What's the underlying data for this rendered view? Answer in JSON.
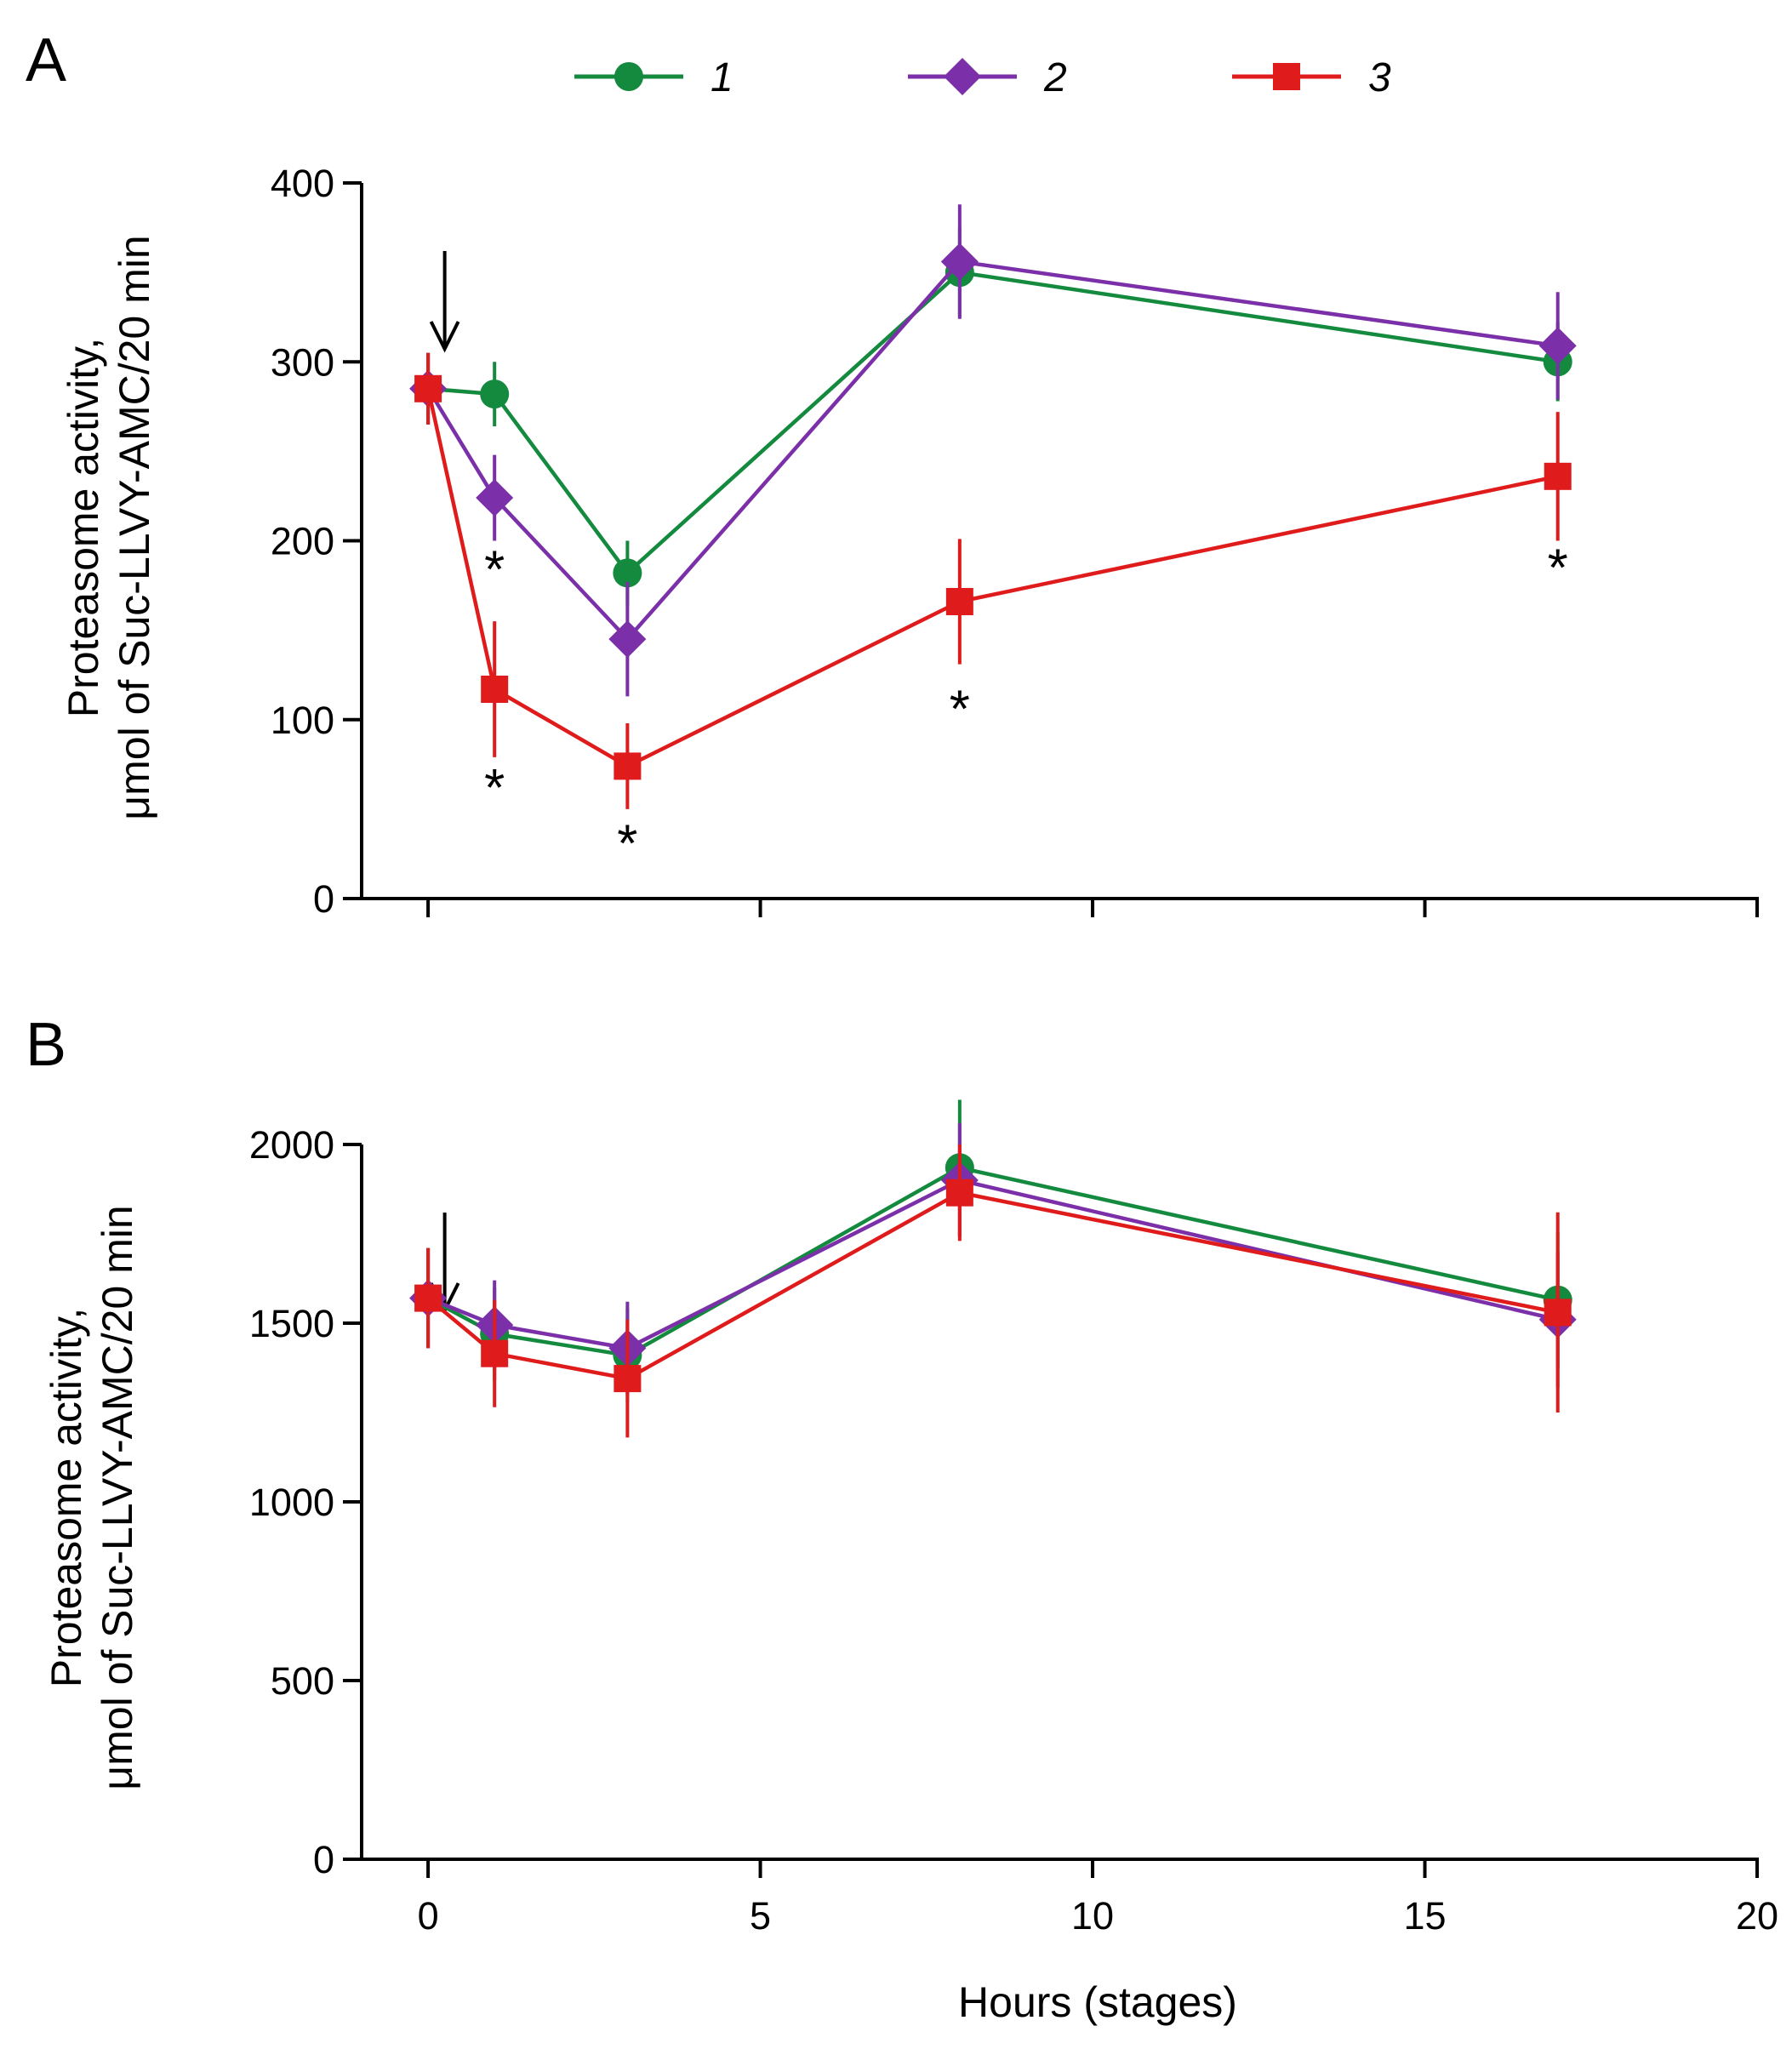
{
  "chart_data": {
    "type": "line",
    "legend": {
      "placement": "top-center",
      "entries": [
        {
          "label": "1",
          "color": "#138a3e",
          "marker": "circle"
        },
        {
          "label": "2",
          "color": "#7b2fa8",
          "marker": "diamond"
        },
        {
          "label": "3",
          "color": "#e01b1b",
          "marker": "square"
        }
      ]
    },
    "xlabel": "Hours (stages)",
    "xlim": [
      -1,
      20
    ],
    "xticks": [
      0,
      5,
      10,
      15,
      20
    ],
    "panels": [
      {
        "label": "A",
        "ylabel": [
          "Proteasome activity,",
          "μmol of Suc-LLVY-AMC/20 min"
        ],
        "ylim": [
          0,
          400
        ],
        "yticks": [
          0,
          100,
          200,
          300,
          400
        ],
        "show_x_tick_labels": false,
        "arrow_x": 0.25,
        "series": [
          {
            "name": "1",
            "color": "#138a3e",
            "marker": "circle",
            "x": [
              0,
              1,
              3,
              8,
              17
            ],
            "y": [
              285,
              282,
              182,
              350,
              300
            ],
            "err": [
              20,
              18,
              18,
              25,
              22
            ]
          },
          {
            "name": "2",
            "color": "#7b2fa8",
            "marker": "diamond",
            "x": [
              0,
              1,
              3,
              8,
              17
            ],
            "y": [
              285,
              224,
              145,
              356,
              309
            ],
            "err": [
              20,
              24,
              32,
              32,
              30
            ]
          },
          {
            "name": "3",
            "color": "#e01b1b",
            "marker": "square",
            "x": [
              0,
              1,
              3,
              8,
              17
            ],
            "y": [
              285,
              117,
              74,
              166,
              236
            ],
            "err": [
              20,
              38,
              24,
              35,
              36
            ]
          }
        ],
        "annotations": [
          {
            "text": "*",
            "x": 1,
            "y": 188
          },
          {
            "text": "*",
            "x": 1,
            "y": 66
          },
          {
            "text": "*",
            "x": 3,
            "y": 35
          },
          {
            "text": "*",
            "x": 8,
            "y": 110
          },
          {
            "text": "*",
            "x": 17,
            "y": 189
          }
        ]
      },
      {
        "label": "B",
        "ylabel": [
          "Proteasome activity,",
          "μmol of Suc-LLVY-AMC/20 min"
        ],
        "ylim": [
          0,
          2000
        ],
        "yticks": [
          0,
          500,
          1000,
          1500,
          2000
        ],
        "show_x_tick_labels": true,
        "arrow_x": 0.25,
        "series": [
          {
            "name": "1",
            "color": "#138a3e",
            "marker": "circle",
            "x": [
              0,
              1,
              3,
              8,
              17
            ],
            "y": [
              1570,
              1470,
              1410,
              1935,
              1565
            ],
            "err": [
              140,
              130,
              130,
              190,
              190
            ]
          },
          {
            "name": "2",
            "color": "#7b2fa8",
            "marker": "diamond",
            "x": [
              0,
              1,
              3,
              8,
              17
            ],
            "y": [
              1570,
              1495,
              1430,
              1900,
              1510
            ],
            "err": [
              140,
              125,
              130,
              160,
              190
            ]
          },
          {
            "name": "3",
            "color": "#e01b1b",
            "marker": "square",
            "x": [
              0,
              1,
              3,
              8,
              17
            ],
            "y": [
              1570,
              1415,
              1345,
              1865,
              1530
            ],
            "err": [
              140,
              150,
              165,
              135,
              280
            ]
          }
        ],
        "annotations": []
      }
    ]
  }
}
